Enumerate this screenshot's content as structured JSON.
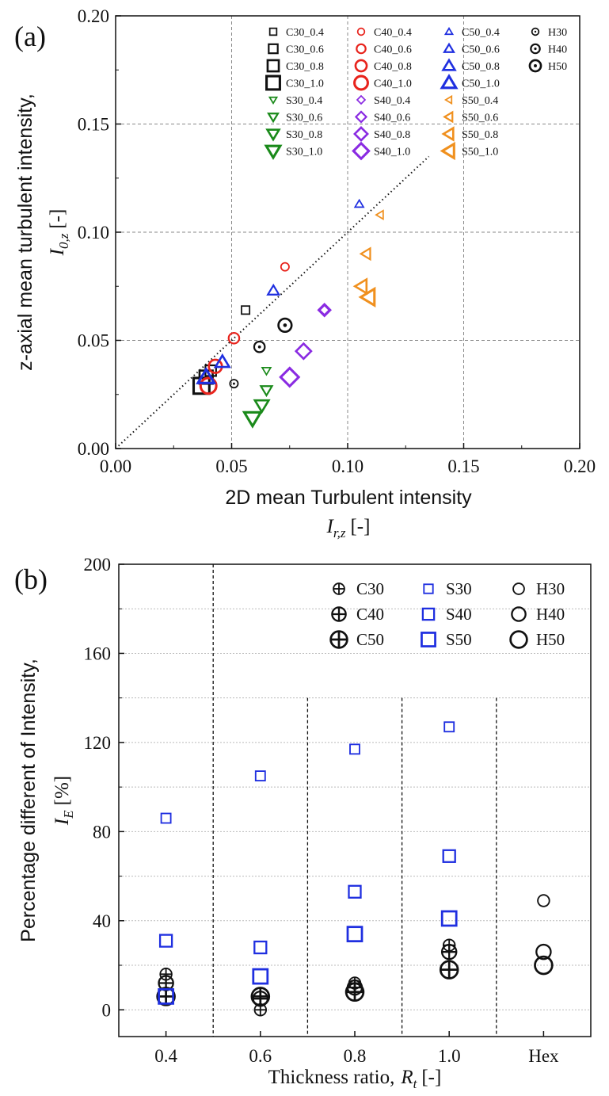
{
  "chart_data": [
    {
      "id": "a",
      "type": "scatter",
      "panel_label": "(a)",
      "xlabel": "2D mean Turbulent intensity",
      "xlabel_symbol": "I",
      "xlabel_sub": "r,z",
      "xlabel_unit": "[-]",
      "ylabel": "z-axial mean turbulent intensity,",
      "ylabel_symbol": "I",
      "ylabel_sub": "0,z",
      "ylabel_unit": "[-]",
      "xlim": [
        0.0,
        0.2
      ],
      "ylim": [
        0.0,
        0.2
      ],
      "xticks": [
        "0.00",
        "0.05",
        "0.10",
        "0.15",
        "0.20"
      ],
      "yticks": [
        "0.00",
        "0.05",
        "0.10",
        "0.15",
        "0.20"
      ],
      "grid": true,
      "reference_line": {
        "type": "y=x",
        "style": "dotted",
        "x_range": [
          0.0,
          0.135
        ]
      },
      "legend_position": "top-right",
      "series": [
        {
          "name": "C30_0.4",
          "marker": "square",
          "color": "#111111",
          "size": 1,
          "points": [
            [
              0.056,
              0.064
            ]
          ]
        },
        {
          "name": "C30_0.6",
          "marker": "square",
          "color": "#111111",
          "size": 2,
          "points": [
            [
              0.041,
              0.036
            ]
          ]
        },
        {
          "name": "C30_0.8",
          "marker": "square",
          "color": "#111111",
          "size": 3,
          "points": [
            [
              0.039,
              0.033
            ]
          ]
        },
        {
          "name": "C30_1.0",
          "marker": "square",
          "color": "#111111",
          "size": 4,
          "points": [
            [
              0.037,
              0.029
            ]
          ]
        },
        {
          "name": "C40_0.4",
          "marker": "circle",
          "color": "#e8231c",
          "size": 1,
          "points": [
            [
              0.073,
              0.084
            ]
          ]
        },
        {
          "name": "C40_0.6",
          "marker": "circle",
          "color": "#e8231c",
          "size": 2,
          "points": [
            [
              0.051,
              0.051
            ]
          ]
        },
        {
          "name": "C40_0.8",
          "marker": "circle",
          "color": "#e8231c",
          "size": 3,
          "points": [
            [
              0.043,
              0.038
            ]
          ]
        },
        {
          "name": "C40_1.0",
          "marker": "circle",
          "color": "#e8231c",
          "size": 4,
          "points": [
            [
              0.04,
              0.029
            ]
          ]
        },
        {
          "name": "C50_0.4",
          "marker": "triangle-up",
          "color": "#1f2fe0",
          "size": 1,
          "points": [
            [
              0.105,
              0.113
            ]
          ]
        },
        {
          "name": "C50_0.6",
          "marker": "triangle-up",
          "color": "#1f2fe0",
          "size": 2,
          "points": [
            [
              0.068,
              0.073
            ]
          ]
        },
        {
          "name": "C50_0.8",
          "marker": "triangle-up",
          "color": "#1f2fe0",
          "size": 3,
          "points": [
            [
              0.046,
              0.04
            ]
          ]
        },
        {
          "name": "C50_1.0",
          "marker": "triangle-up",
          "color": "#1f2fe0",
          "size": 4,
          "points": [
            [
              0.039,
              0.033
            ]
          ]
        },
        {
          "name": "S30_0.4",
          "marker": "triangle-down",
          "color": "#1a8a1a",
          "size": 1,
          "points": [
            [
              0.065,
              0.036
            ]
          ]
        },
        {
          "name": "S30_0.6",
          "marker": "triangle-down",
          "color": "#1a8a1a",
          "size": 2,
          "points": [
            [
              0.065,
              0.027
            ]
          ]
        },
        {
          "name": "S30_0.8",
          "marker": "triangle-down",
          "color": "#1a8a1a",
          "size": 3,
          "points": [
            [
              0.063,
              0.02
            ]
          ]
        },
        {
          "name": "S30_1.0",
          "marker": "triangle-down",
          "color": "#1a8a1a",
          "size": 4,
          "points": [
            [
              0.059,
              0.014
            ]
          ]
        },
        {
          "name": "S40_0.4",
          "marker": "diamond",
          "color": "#8a2be2",
          "size": 1,
          "points": [
            [
              0.09,
              0.064
            ]
          ]
        },
        {
          "name": "S40_0.6",
          "marker": "diamond",
          "color": "#8a2be2",
          "size": 2,
          "points": [
            [
              0.09,
              0.064
            ]
          ]
        },
        {
          "name": "S40_0.8",
          "marker": "diamond",
          "color": "#8a2be2",
          "size": 3,
          "points": [
            [
              0.081,
              0.045
            ]
          ]
        },
        {
          "name": "S40_1.0",
          "marker": "diamond",
          "color": "#8a2be2",
          "size": 4,
          "points": [
            [
              0.075,
              0.033
            ]
          ]
        },
        {
          "name": "S50_0.4",
          "marker": "triangle-left",
          "color": "#f0901e",
          "size": 1,
          "points": [
            [
              0.114,
              0.108
            ]
          ]
        },
        {
          "name": "S50_0.6",
          "marker": "triangle-left",
          "color": "#f0901e",
          "size": 2,
          "points": [
            [
              0.108,
              0.09
            ]
          ]
        },
        {
          "name": "S50_0.8",
          "marker": "triangle-left",
          "color": "#f0901e",
          "size": 3,
          "points": [
            [
              0.106,
              0.075
            ]
          ]
        },
        {
          "name": "S50_1.0",
          "marker": "triangle-left",
          "color": "#f0901e",
          "size": 4,
          "points": [
            [
              0.109,
              0.07
            ]
          ]
        },
        {
          "name": "H30",
          "marker": "dot-circle",
          "color": "#111111",
          "size": 1,
          "points": [
            [
              0.051,
              0.03
            ]
          ]
        },
        {
          "name": "H40",
          "marker": "dot-circle",
          "color": "#111111",
          "size": 2,
          "points": [
            [
              0.062,
              0.047
            ]
          ]
        },
        {
          "name": "H50",
          "marker": "dot-circle",
          "color": "#111111",
          "size": 3,
          "points": [
            [
              0.073,
              0.057
            ]
          ]
        }
      ]
    },
    {
      "id": "b",
      "type": "scatter",
      "panel_label": "(b)",
      "xlabel": "Thickness ratio,",
      "xlabel_symbol": "R",
      "xlabel_sub": "t",
      "xlabel_unit": "[-]",
      "ylabel": "Percentage different of Intensity,",
      "ylabel_symbol": "I",
      "ylabel_sub": "E",
      "ylabel_unit": "[%]",
      "categories": [
        "0.4",
        "0.6",
        "0.8",
        "1.0",
        "Hex"
      ],
      "ylim": [
        -12,
        200
      ],
      "yticks": [
        "0",
        "40",
        "80",
        "120",
        "160",
        "200"
      ],
      "grid": true,
      "legend_position": "top-right",
      "series": [
        {
          "name": "C30",
          "marker": "circle-plus",
          "color": "#111111",
          "size": 1,
          "values": [
            16,
            0,
            12,
            29,
            null
          ]
        },
        {
          "name": "C40",
          "marker": "circle-plus",
          "color": "#111111",
          "size": 2,
          "values": [
            12,
            5,
            10,
            26,
            null
          ]
        },
        {
          "name": "C50",
          "marker": "circle-plus",
          "color": "#111111",
          "size": 3,
          "values": [
            6,
            6,
            8,
            18,
            null
          ]
        },
        {
          "name": "S30",
          "marker": "square",
          "color": "#1f2fe0",
          "size": 1,
          "values": [
            86,
            105,
            117,
            127,
            null
          ]
        },
        {
          "name": "S40",
          "marker": "square",
          "color": "#1f2fe0",
          "size": 2,
          "values": [
            31,
            28,
            53,
            69,
            null
          ]
        },
        {
          "name": "S50",
          "marker": "square",
          "color": "#1f2fe0",
          "size": 3,
          "values": [
            6,
            15,
            34,
            41,
            null
          ]
        },
        {
          "name": "H30",
          "marker": "circle",
          "color": "#111111",
          "size": 1,
          "values": [
            null,
            null,
            null,
            null,
            49
          ]
        },
        {
          "name": "H40",
          "marker": "circle",
          "color": "#111111",
          "size": 2,
          "values": [
            null,
            null,
            null,
            null,
            26
          ]
        },
        {
          "name": "H50",
          "marker": "circle",
          "color": "#111111",
          "size": 3,
          "values": [
            null,
            null,
            null,
            null,
            20
          ]
        }
      ]
    }
  ]
}
